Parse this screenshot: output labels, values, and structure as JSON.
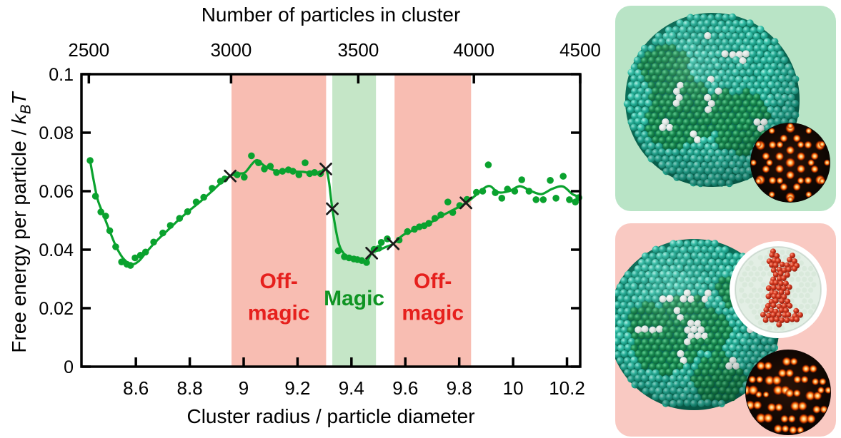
{
  "chart_data": {
    "type": "line",
    "top_axis": {
      "title": "Number of particles in cluster",
      "ticks": [
        2500,
        3000,
        3500,
        4000,
        4500
      ],
      "cube_coefficient": 4.18
    },
    "x_axis": {
      "label": "Cluster radius / particle diameter",
      "range": [
        8.398,
        10.249
      ],
      "ticks": [
        8.6,
        8.8,
        9.0,
        9.2,
        9.4,
        9.6,
        9.8,
        10.0,
        10.2
      ],
      "tick_labels": [
        "8.6",
        "8.8",
        "9",
        "9.2",
        "9.4",
        "9.6",
        "9.8",
        "10",
        "10.2"
      ]
    },
    "y_axis": {
      "label_prefix": "Free energy per particle / ",
      "label_k": "k",
      "label_k_sub": "B",
      "label_T": "T",
      "range": [
        0,
        0.1
      ],
      "ticks": [
        0,
        0.02,
        0.04,
        0.06,
        0.08,
        0.1
      ],
      "tick_labels": [
        "0",
        "0.02",
        "0.04",
        "0.06",
        "0.08",
        "0.1"
      ]
    },
    "bands": [
      {
        "kind": "off-magic-1",
        "from": 8.955,
        "to": 9.306,
        "fill": "#f8bdb2",
        "label_color": "#e6201d",
        "labels": [
          {
            "text": "Off-",
            "v": 0.0295
          },
          {
            "text": "magic",
            "v": 0.0186
          }
        ]
      },
      {
        "kind": "magic",
        "from": 9.329,
        "to": 9.491,
        "fill": "#c5e6c7",
        "label_color": "#0f9423",
        "labels": [
          {
            "text": "Magic",
            "v": 0.0237
          }
        ]
      },
      {
        "kind": "off-magic-2",
        "from": 9.56,
        "to": 9.844,
        "fill": "#f8bdb2",
        "label_color": "#e6201d",
        "labels": [
          {
            "text": "Off-",
            "v": 0.0295
          },
          {
            "text": "magic",
            "v": 0.0186
          }
        ]
      }
    ],
    "series": {
      "name": "free-energy-per-particle",
      "color": "#0aa22e",
      "points": [
        [
          8.43,
          0.0705
        ],
        [
          8.45,
          0.0583
        ],
        [
          8.47,
          0.0529
        ],
        [
          8.488,
          0.0515
        ],
        [
          8.503,
          0.0465
        ],
        [
          8.525,
          0.041
        ],
        [
          8.547,
          0.0358
        ],
        [
          8.567,
          0.035
        ],
        [
          8.58,
          0.0346
        ],
        [
          8.597,
          0.0372
        ],
        [
          8.617,
          0.0381
        ],
        [
          8.636,
          0.0392
        ],
        [
          8.666,
          0.0426
        ],
        [
          8.7,
          0.0457
        ],
        [
          8.728,
          0.0483
        ],
        [
          8.762,
          0.0507
        ],
        [
          8.792,
          0.053
        ],
        [
          8.824,
          0.0563
        ],
        [
          8.852,
          0.0579
        ],
        [
          8.883,
          0.061
        ],
        [
          8.914,
          0.0634
        ],
        [
          8.93,
          0.0642
        ],
        [
          8.976,
          0.0656
        ],
        [
          9.002,
          0.0648
        ],
        [
          9.029,
          0.0721
        ],
        [
          9.055,
          0.0697
        ],
        [
          9.077,
          0.0676
        ],
        [
          9.099,
          0.0685
        ],
        [
          9.122,
          0.0664
        ],
        [
          9.144,
          0.0668
        ],
        [
          9.166,
          0.0673
        ],
        [
          9.183,
          0.0668
        ],
        [
          9.205,
          0.0656
        ],
        [
          9.228,
          0.0697
        ],
        [
          9.245,
          0.066
        ],
        [
          9.263,
          0.0664
        ],
        [
          9.285,
          0.066
        ],
        [
          9.351,
          0.0396
        ],
        [
          9.374,
          0.0376
        ],
        [
          9.391,
          0.0372
        ],
        [
          9.409,
          0.0368
        ],
        [
          9.422,
          0.0366
        ],
        [
          9.438,
          0.0363
        ],
        [
          9.456,
          0.0356
        ],
        [
          9.484,
          0.0401
        ],
        [
          9.502,
          0.0405
        ],
        [
          9.511,
          0.0425
        ],
        [
          9.533,
          0.0437
        ],
        [
          9.577,
          0.0433
        ],
        [
          9.608,
          0.0462
        ],
        [
          9.634,
          0.047
        ],
        [
          9.652,
          0.0478
        ],
        [
          9.67,
          0.0482
        ],
        [
          9.687,
          0.049
        ],
        [
          9.71,
          0.0507
        ],
        [
          9.732,
          0.0519
        ],
        [
          9.758,
          0.0563
        ],
        [
          9.776,
          0.0527
        ],
        [
          9.802,
          0.0551
        ],
        [
          9.829,
          0.0572
        ],
        [
          9.864,
          0.0596
        ],
        [
          9.887,
          0.06
        ],
        [
          9.908,
          0.069
        ],
        [
          9.934,
          0.0595
        ],
        [
          9.958,
          0.0576
        ],
        [
          9.979,
          0.0607
        ],
        [
          10.006,
          0.06
        ],
        [
          10.032,
          0.0639
        ],
        [
          10.059,
          0.06
        ],
        [
          10.085,
          0.0571
        ],
        [
          10.112,
          0.0571
        ],
        [
          10.138,
          0.0637
        ],
        [
          10.159,
          0.0576
        ],
        [
          10.186,
          0.0651
        ],
        [
          10.209,
          0.0571
        ],
        [
          10.231,
          0.0563
        ],
        [
          10.244,
          0.0578
        ]
      ],
      "trend": [
        [
          8.43,
          0.0705
        ],
        [
          8.443,
          0.0638
        ],
        [
          8.458,
          0.0572
        ],
        [
          8.478,
          0.0523
        ],
        [
          8.5,
          0.047
        ],
        [
          8.528,
          0.0408
        ],
        [
          8.555,
          0.0368
        ],
        [
          8.585,
          0.035
        ],
        [
          8.612,
          0.0362
        ],
        [
          8.64,
          0.0393
        ],
        [
          8.68,
          0.0433
        ],
        [
          8.72,
          0.0468
        ],
        [
          8.76,
          0.0503
        ],
        [
          8.8,
          0.0535
        ],
        [
          8.84,
          0.0565
        ],
        [
          8.88,
          0.0598
        ],
        [
          8.92,
          0.0632
        ],
        [
          8.95,
          0.0652
        ],
        [
          8.98,
          0.066
        ],
        [
          9.005,
          0.0664
        ],
        [
          9.03,
          0.0692
        ],
        [
          9.05,
          0.0706
        ],
        [
          9.075,
          0.0688
        ],
        [
          9.1,
          0.0676
        ],
        [
          9.13,
          0.0667
        ],
        [
          9.16,
          0.0671
        ],
        [
          9.19,
          0.0667
        ],
        [
          9.22,
          0.0666
        ],
        [
          9.25,
          0.0661
        ],
        [
          9.28,
          0.0661
        ],
        [
          9.305,
          0.0676
        ],
        [
          9.317,
          0.063
        ],
        [
          9.329,
          0.054
        ],
        [
          9.352,
          0.0425
        ],
        [
          9.375,
          0.0383
        ],
        [
          9.4,
          0.0369
        ],
        [
          9.43,
          0.0363
        ],
        [
          9.455,
          0.0358
        ],
        [
          9.475,
          0.0388
        ],
        [
          9.5,
          0.0398
        ],
        [
          9.53,
          0.041
        ],
        [
          9.555,
          0.042
        ],
        [
          9.59,
          0.0449
        ],
        [
          9.625,
          0.0465
        ],
        [
          9.66,
          0.0477
        ],
        [
          9.7,
          0.0496
        ],
        [
          9.74,
          0.0518
        ],
        [
          9.78,
          0.0537
        ],
        [
          9.825,
          0.056
        ],
        [
          9.86,
          0.0585
        ],
        [
          9.89,
          0.0609
        ],
        [
          9.915,
          0.0617
        ],
        [
          9.945,
          0.0596
        ],
        [
          9.985,
          0.06
        ],
        [
          10.025,
          0.0617
        ],
        [
          10.065,
          0.0601
        ],
        [
          10.105,
          0.059
        ],
        [
          10.145,
          0.0608
        ],
        [
          10.185,
          0.0616
        ],
        [
          10.22,
          0.059
        ],
        [
          10.249,
          0.058
        ]
      ]
    },
    "cross_markers": {
      "color": "#1b1b1b",
      "points": [
        [
          8.95,
          0.0652
        ],
        [
          9.305,
          0.0676
        ],
        [
          9.329,
          0.054
        ],
        [
          9.475,
          0.0388
        ],
        [
          9.555,
          0.042
        ],
        [
          9.825,
          0.056
        ]
      ]
    }
  },
  "panels": [
    {
      "name": "magic-cluster-panel",
      "bg_color": "#b9e4c6",
      "contents": [
        "particle-cluster",
        "diffraction-pattern"
      ]
    },
    {
      "name": "off-magic-cluster-panel",
      "bg_color": "#f9c9c2",
      "contents": [
        "particle-cluster",
        "defect-blob-inset",
        "diffraction-pattern"
      ]
    }
  ],
  "art_colors": {
    "teal_sphere": "#27b29b",
    "teal_sphere_dark": "#0b7d66",
    "green_patch_sphere": "#178a50",
    "white_sphere": "#e6eeea",
    "red_defect_sphere": "#d53a20",
    "diffraction_background": "#190b04",
    "diffraction_spot": "#ffc76e",
    "inset_ring": "#ffffff",
    "inset_background": "#e3efe5"
  }
}
